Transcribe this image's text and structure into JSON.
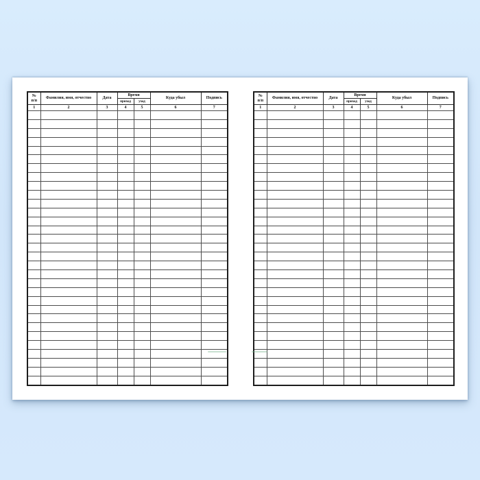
{
  "scene": {
    "background_top": "#d9ecfd",
    "background_mid": "#d2e6fa",
    "background_bottom": "#d6e9fc",
    "sheet_color": "#ffffff",
    "table_border_color": "#1c1c1c",
    "grid_line_color": "#4c4c4c"
  },
  "journal": {
    "pages": [
      {
        "side": "left"
      },
      {
        "side": "right"
      }
    ],
    "table": {
      "header": {
        "number_line1": "№",
        "number_line2": "п/п",
        "full_name": "Фамилия, имя, отчество",
        "date": "Дата",
        "time_group": "Время",
        "time_arrival": "приход",
        "time_departure": "уход",
        "destination": "Куда убыл",
        "signature": "Подпись"
      },
      "column_numbers": [
        "1",
        "2",
        "3",
        "4",
        "5",
        "6",
        "7"
      ],
      "empty_row_count": 31
    },
    "watermark_color": "#6fae85"
  }
}
